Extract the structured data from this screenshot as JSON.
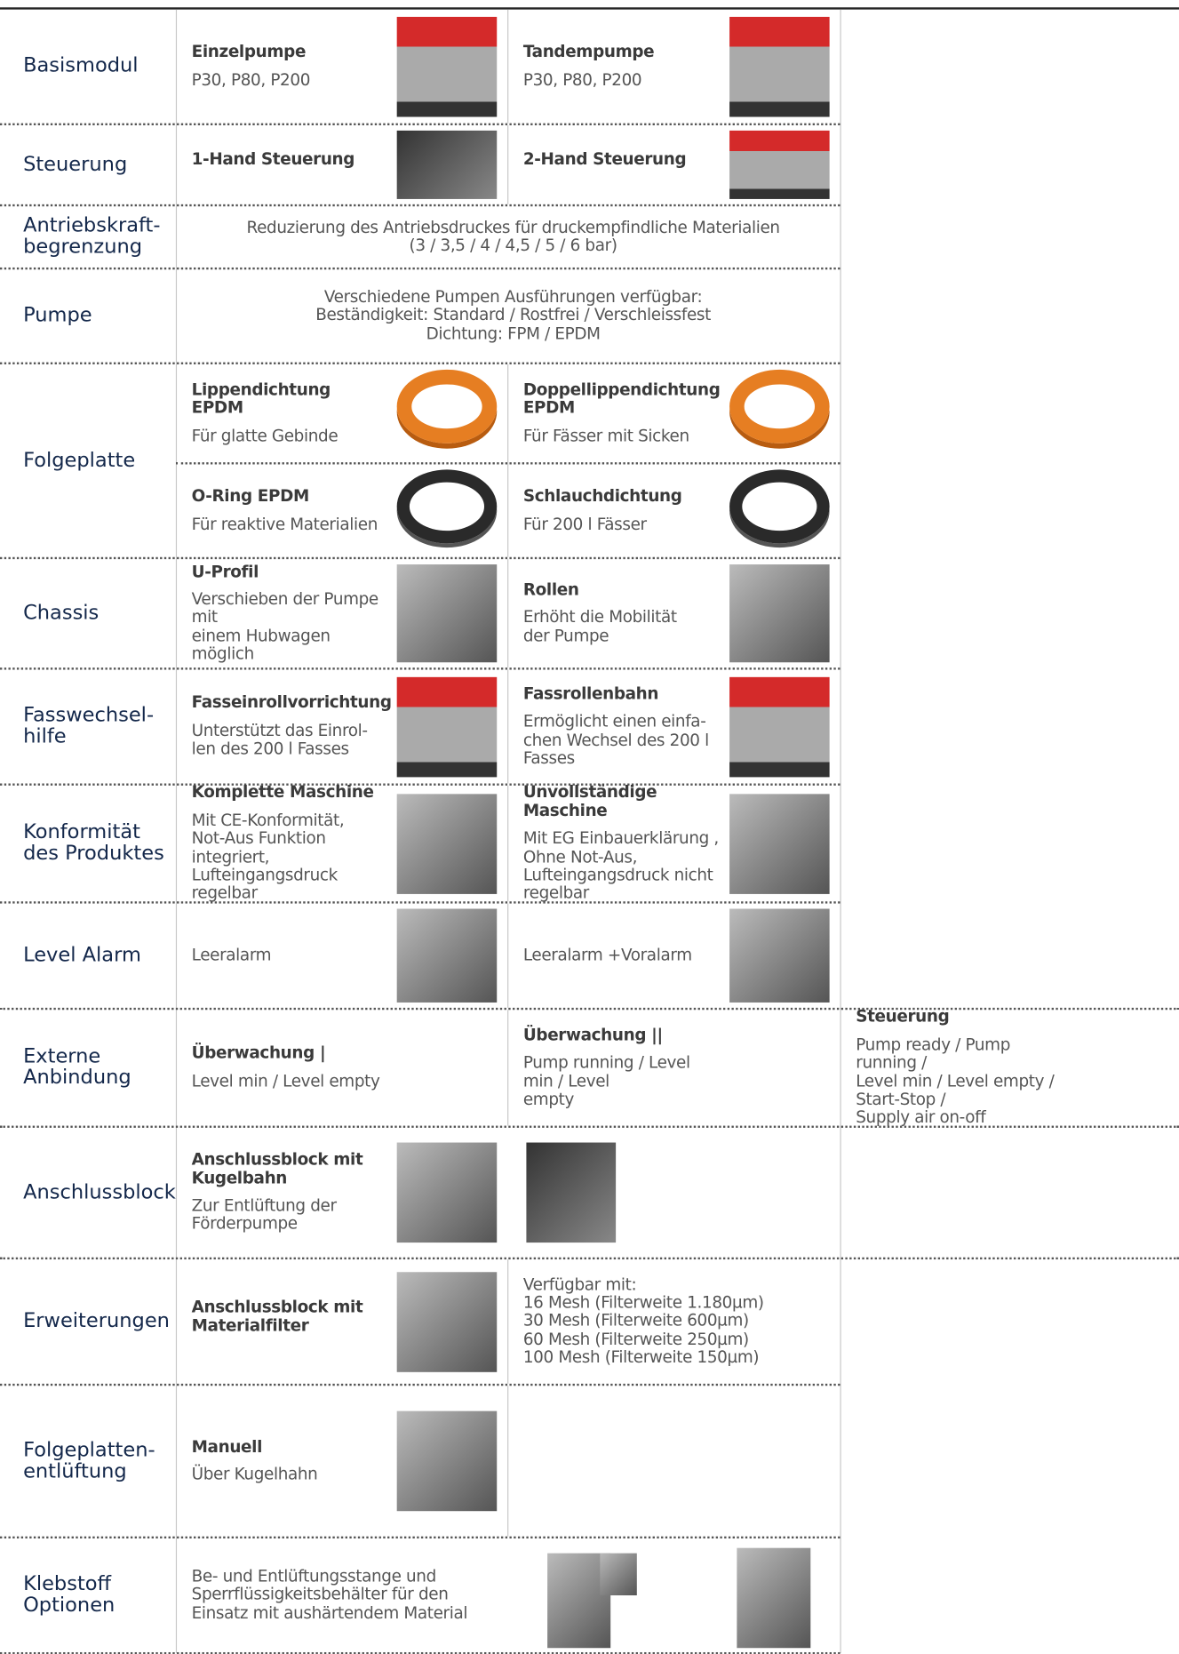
{
  "table": {
    "rows": [
      {
        "label": [
          "Basismodul"
        ],
        "cells": [
          {
            "title": "Einzelpumpe",
            "text": [
              "P30, P80, P200"
            ]
          },
          {
            "title": "Tandempumpe",
            "text": [
              "P30, P80, P200"
            ]
          }
        ]
      },
      {
        "label": [
          "Steuerung"
        ],
        "cells": [
          {
            "title": "1-Hand Steuerung"
          },
          {
            "title": "2-Hand Steuerung"
          }
        ]
      },
      {
        "label": [
          "Antriebskraft-",
          "begrenzung"
        ],
        "cells": [
          {
            "text": [
              "Reduzierung des Antriebsdruckes für druckempfindliche Materialien",
              "(3 / 3,5 / 4 / 4,5 / 5 / 6 bar)"
            ]
          }
        ]
      },
      {
        "label": [
          "Pumpe"
        ],
        "cells": [
          {
            "text": [
              "Verschiedene Pumpen Ausführungen verfügbar:",
              "Beständigkeit: Standard / Rostfrei / Verschleissfest",
              "Dichtung: FPM / EPDM"
            ]
          }
        ]
      },
      {
        "label": [
          "Folgeplatte"
        ],
        "cells": [
          {
            "title": "Lippendichtung EPDM",
            "text": [
              "Für glatte Gebinde"
            ]
          },
          {
            "title": "Doppellippendichtung EPDM",
            "text": [
              "Für Fässer mit Sicken"
            ]
          },
          {
            "title": "O-Ring EPDM",
            "text": [
              "Für reaktive Materialien"
            ]
          },
          {
            "title": "Schlauchdichtung",
            "text": [
              "Für 200 l Fässer"
            ]
          }
        ]
      },
      {
        "label": [
          "Chassis"
        ],
        "cells": [
          {
            "title": "U-Profil",
            "text": [
              "Verschieben der Pumpe mit",
              "einem Hubwagen möglich"
            ]
          },
          {
            "title": "Rollen",
            "text": [
              "Erhöht die Mobilität",
              "der Pumpe"
            ]
          }
        ]
      },
      {
        "label": [
          "Fasswechsel-",
          "hilfe"
        ],
        "cells": [
          {
            "title": "Fasseinrollvorrichtung",
            "text": [
              "Unterstützt das Einrol-",
              "len des 200 l Fasses"
            ]
          },
          {
            "title": "Fassrollenbahn",
            "text": [
              "Ermöglicht einen einfa-",
              "chen Wechsel des 200 l",
              "Fasses"
            ]
          }
        ]
      },
      {
        "label": [
          "Konformität",
          "des Produktes"
        ],
        "cells": [
          {
            "title": "Komplette Maschine",
            "text": [
              "Mit CE-Konformität,",
              "Not-Aus Funktion integriert,",
              "Lufteingangsdruck regelbar"
            ]
          },
          {
            "title": "Unvollständige Maschine",
            "text": [
              "Mit EG Einbauerklärung ,",
              "Ohne Not-Aus,",
              "Lufteingangsdruck nicht regelbar"
            ]
          }
        ]
      },
      {
        "label": [
          "Level Alarm"
        ],
        "cells": [
          {
            "text": [
              "Leeralarm"
            ]
          },
          {
            "text": [
              "Leeralarm +Voralarm"
            ]
          }
        ]
      },
      {
        "label": [
          "Externe",
          "Anbindung"
        ],
        "cells": [
          {
            "title": "Überwachung |",
            "text": [
              "Level min / Level empty"
            ]
          },
          {
            "title": "Überwachung ||",
            "text": [
              "Pump running / Level min / Level",
              "empty"
            ]
          },
          {
            "title": "Steuerung",
            "text": [
              "Pump ready / Pump running /",
              "Level min / Level empty / Start-Stop /",
              "Supply air on-off"
            ]
          }
        ]
      },
      {
        "label": [
          "Anschlussblock"
        ],
        "cells": [
          {
            "title": "Anschlussblock mit Kugelbahn",
            "text": [
              "Zur Entlüftung der Förderpumpe"
            ]
          }
        ]
      },
      {
        "label": [
          "Erweiterungen"
        ],
        "cells": [
          {
            "title": "Anschlussblock mit Materialfilter"
          },
          {
            "text": [
              "Verfügbar mit:",
              "16 Mesh (Filterweite 1.180µm)",
              "30 Mesh (Filterweite 600µm)",
              "60 Mesh (Filterweite 250µm)",
              "100 Mesh (Filterweite 150µm)"
            ]
          }
        ]
      },
      {
        "label": [
          "Folgeplatten-",
          "entlüftung"
        ],
        "cells": [
          {
            "title": "Manuell",
            "text": [
              "Über Kugelhahn"
            ]
          }
        ]
      },
      {
        "label": [
          "Klebstoff",
          "Optionen"
        ],
        "cells": [
          {
            "text": [
              "Be- und Entlüftungsstange und",
              "Sperrflüssigkeitsbehälter für den",
              "Einsatz mit aushärtendem Material"
            ]
          }
        ]
      }
    ]
  }
}
